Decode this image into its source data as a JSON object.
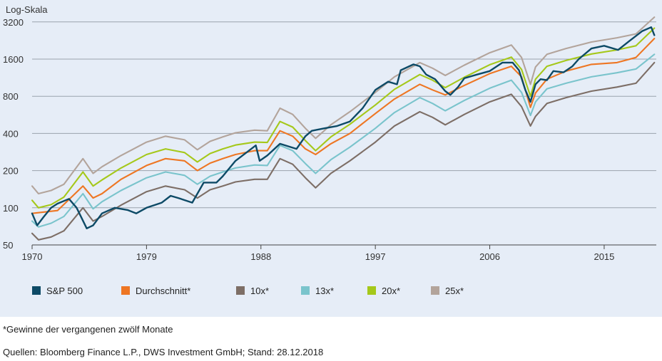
{
  "chart_data": {
    "type": "line",
    "scale": "log",
    "yscale_label": "Log-Skala",
    "ylim": [
      50,
      4000
    ],
    "yticks": [
      50,
      100,
      200,
      400,
      800,
      1600,
      3200
    ],
    "xlim": [
      1970,
      2019.1
    ],
    "xticks": [
      1970,
      1979,
      1988,
      1997,
      2006,
      2015
    ],
    "grid": true,
    "legend_position": "bottom",
    "series": [
      {
        "name": "S&P 500",
        "color": "#0d4a66",
        "x": [
          1970,
          1970.4,
          1970.9,
          1971.5,
          1972,
          1972.9,
          1973.5,
          1974.3,
          1974.8,
          1975.5,
          1976.5,
          1977.5,
          1978.2,
          1979,
          1980.2,
          1980.9,
          1981.5,
          1982.6,
          1983.5,
          1984.5,
          1985,
          1986,
          1987.6,
          1987.9,
          1988.5,
          1989.5,
          1990.8,
          1991.5,
          1992,
          1993,
          1994,
          1995,
          1996,
          1997,
          1998,
          1998.7,
          1999,
          2000,
          2000.5,
          2001,
          2001.7,
          2002.5,
          2002.9,
          2003.5,
          2004,
          2005,
          2006,
          2007,
          2007.8,
          2008.3,
          2008.8,
          2009.2,
          2009.6,
          2010,
          2010.5,
          2011,
          2011.8,
          2012.5,
          2013,
          2014,
          2015,
          2016.1,
          2017,
          2018,
          2018.7,
          2018.95
        ],
        "values": [
          90,
          72,
          84,
          100,
          108,
          118,
          100,
          68,
          72,
          90,
          100,
          96,
          90,
          100,
          110,
          125,
          120,
          110,
          160,
          160,
          180,
          240,
          320,
          240,
          265,
          330,
          300,
          380,
          420,
          440,
          460,
          500,
          640,
          900,
          1050,
          1000,
          1300,
          1450,
          1400,
          1200,
          1100,
          880,
          820,
          950,
          1120,
          1200,
          1280,
          1500,
          1500,
          1300,
          900,
          720,
          1000,
          1100,
          1080,
          1280,
          1250,
          1400,
          1600,
          1950,
          2050,
          1900,
          2250,
          2700,
          2900,
          2500
        ]
      },
      {
        "name": "Durchschnitt*",
        "color": "#ee7623",
        "x": [
          1970,
          1972,
          1974,
          1974.8,
          1975.5,
          1977,
          1979,
          1980.5,
          1982,
          1983,
          1984,
          1985,
          1986,
          1987.5,
          1988.5,
          1989.5,
          1990.5,
          1991.5,
          1992.3,
          1993.5,
          1995,
          1997,
          1998.5,
          2000.5,
          2001.5,
          2002.5,
          2004,
          2006,
          2007.7,
          2008.5,
          2009.2,
          2009.6,
          2010.5,
          2012,
          2014,
          2016,
          2017.5,
          2018.95
        ],
        "values": [
          90,
          95,
          150,
          120,
          130,
          170,
          220,
          250,
          240,
          200,
          230,
          250,
          270,
          290,
          290,
          420,
          380,
          300,
          270,
          330,
          400,
          580,
          760,
          1000,
          900,
          820,
          980,
          1220,
          1400,
          1150,
          650,
          850,
          1100,
          1280,
          1450,
          1500,
          1650,
          2350
        ]
      },
      {
        "name": "10x*",
        "color": "#7d6e66",
        "x": [
          1970,
          1970.5,
          1971.5,
          1972.5,
          1974,
          1974.8,
          1975.5,
          1977,
          1979,
          1980.5,
          1982,
          1983,
          1984,
          1985,
          1986,
          1987.5,
          1988.5,
          1989.5,
          1990.5,
          1991.5,
          1992.3,
          1993.5,
          1995,
          1997,
          1998.5,
          2000.5,
          2001.5,
          2002.5,
          2004,
          2006,
          2007.7,
          2008.5,
          2009.2,
          2009.6,
          2010.5,
          2012,
          2014,
          2016,
          2017.5,
          2018.95
        ],
        "values": [
          62,
          55,
          58,
          65,
          100,
          78,
          85,
          105,
          135,
          150,
          140,
          120,
          140,
          150,
          162,
          170,
          170,
          250,
          225,
          175,
          145,
          190,
          240,
          340,
          460,
          600,
          540,
          470,
          570,
          720,
          830,
          660,
          460,
          550,
          700,
          780,
          880,
          950,
          1020,
          1500
        ]
      },
      {
        "name": "13x*",
        "color": "#7ac4cc",
        "x": [
          1970,
          1970.5,
          1971.5,
          1972.5,
          1974,
          1974.8,
          1975.5,
          1977,
          1979,
          1980.5,
          1982,
          1983,
          1984,
          1985,
          1986,
          1987.5,
          1988.5,
          1989.5,
          1990.5,
          1991.5,
          1992.3,
          1993.5,
          1995,
          1997,
          1998.5,
          2000.5,
          2001.5,
          2002.5,
          2004,
          2006,
          2007.7,
          2008.5,
          2009.2,
          2009.6,
          2010.5,
          2012,
          2014,
          2016,
          2017.5,
          2018.95
        ],
        "values": [
          78,
          70,
          75,
          85,
          130,
          98,
          112,
          138,
          175,
          195,
          183,
          155,
          180,
          195,
          210,
          222,
          220,
          320,
          290,
          228,
          190,
          245,
          310,
          440,
          590,
          780,
          700,
          610,
          740,
          930,
          1080,
          860,
          560,
          720,
          920,
          1020,
          1150,
          1240,
          1330,
          1750
        ]
      },
      {
        "name": "20x*",
        "color": "#a5c81a",
        "x": [
          1970,
          1970.5,
          1971.5,
          1972.5,
          1974,
          1974.8,
          1975.5,
          1977,
          1979,
          1980.5,
          1982,
          1983,
          1984,
          1985,
          1986,
          1987.5,
          1988.5,
          1989.5,
          1990.5,
          1991.5,
          1992.3,
          1993.5,
          1995,
          1997,
          1998.5,
          2000.5,
          2001.5,
          2002.5,
          2004,
          2006,
          2007.7,
          2008.5,
          2009.2,
          2009.6,
          2010.5,
          2012,
          2014,
          2016,
          2017.5,
          2018.95
        ],
        "values": [
          115,
          100,
          106,
          122,
          195,
          150,
          168,
          210,
          270,
          300,
          280,
          235,
          275,
          300,
          322,
          340,
          338,
          500,
          450,
          350,
          290,
          375,
          475,
          680,
          910,
          1200,
          1080,
          940,
          1140,
          1440,
          1660,
          1320,
          800,
          1100,
          1400,
          1560,
          1760,
          1900,
          2050,
          2850
        ]
      },
      {
        "name": "25x*",
        "color": "#b3a49b",
        "x": [
          1970,
          1970.5,
          1971.5,
          1972.5,
          1974,
          1974.8,
          1975.5,
          1977,
          1979,
          1980.5,
          1982,
          1983,
          1984,
          1985,
          1986,
          1987.5,
          1988.5,
          1989.5,
          1990.5,
          1991.5,
          1992.3,
          1993.5,
          1995,
          1997,
          1998.5,
          2000.5,
          2001.5,
          2002.5,
          2004,
          2006,
          2007.7,
          2008.5,
          2009.2,
          2009.6,
          2010.5,
          2012,
          2014,
          2016,
          2017.5,
          2018.95
        ],
        "values": [
          150,
          130,
          138,
          155,
          250,
          190,
          215,
          265,
          340,
          380,
          355,
          295,
          345,
          375,
          405,
          425,
          420,
          640,
          570,
          440,
          365,
          470,
          600,
          860,
          1150,
          1500,
          1350,
          1180,
          1430,
          1800,
          2080,
          1650,
          1000,
          1380,
          1750,
          1950,
          2200,
          2380,
          2560,
          3500
        ]
      }
    ]
  },
  "footnote": "*Gewinne der vergangenen zwölf Monate",
  "sources": "Quellen: Bloomberg Finance L.P., DWS Investment GmbH; Stand: 28.12.2018"
}
